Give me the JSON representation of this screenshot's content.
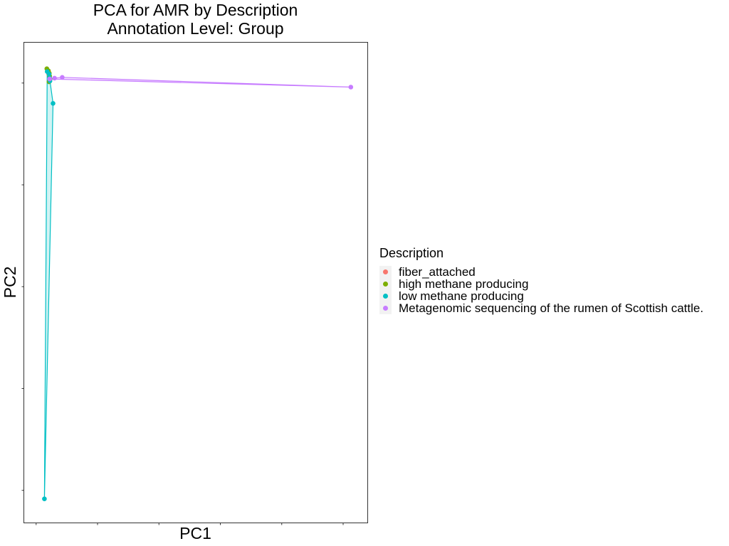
{
  "chart_data": {
    "type": "scatter",
    "title": "PCA for AMR by Description",
    "subtitle": "Annotation Level: Group",
    "xlabel": "PC1",
    "ylabel": "PC2",
    "xlim": [
      -0.4,
      10.8
    ],
    "ylim": [
      -10.8,
      1.0
    ],
    "grid": false,
    "legend_position": "right",
    "legend_title": "Description",
    "series": [
      {
        "name": "fiber_attached",
        "color": "#F8766D",
        "points": [
          {
            "x": 0.4,
            "y": 0.26
          },
          {
            "x": 0.41,
            "y": 0.22
          }
        ],
        "hull": false
      },
      {
        "name": "high methane producing",
        "color": "#7CAE00",
        "points": [
          {
            "x": 0.35,
            "y": 0.35
          },
          {
            "x": 0.4,
            "y": 0.3
          },
          {
            "x": 0.43,
            "y": 0.24
          },
          {
            "x": 0.44,
            "y": 0.17
          },
          {
            "x": 0.45,
            "y": 0.1
          },
          {
            "x": 0.42,
            "y": 0.03
          }
        ],
        "hull": true
      },
      {
        "name": "low methane producing",
        "color": "#00BFC4",
        "points": [
          {
            "x": 0.36,
            "y": 0.28
          },
          {
            "x": 0.42,
            "y": 0.22
          },
          {
            "x": 0.44,
            "y": 0.12
          },
          {
            "x": 0.45,
            "y": 0.05
          },
          {
            "x": 0.55,
            "y": -0.5
          },
          {
            "x": 0.27,
            "y": -10.21
          }
        ],
        "hull": true
      },
      {
        "name": "Metagenomic sequencing of the rumen of Scottish cattle.",
        "color": "#C77CFF",
        "points": [
          {
            "x": 0.44,
            "y": 0.1
          },
          {
            "x": 0.6,
            "y": 0.12
          },
          {
            "x": 0.85,
            "y": 0.14
          },
          {
            "x": 10.25,
            "y": -0.1
          }
        ],
        "hull": true
      }
    ]
  }
}
